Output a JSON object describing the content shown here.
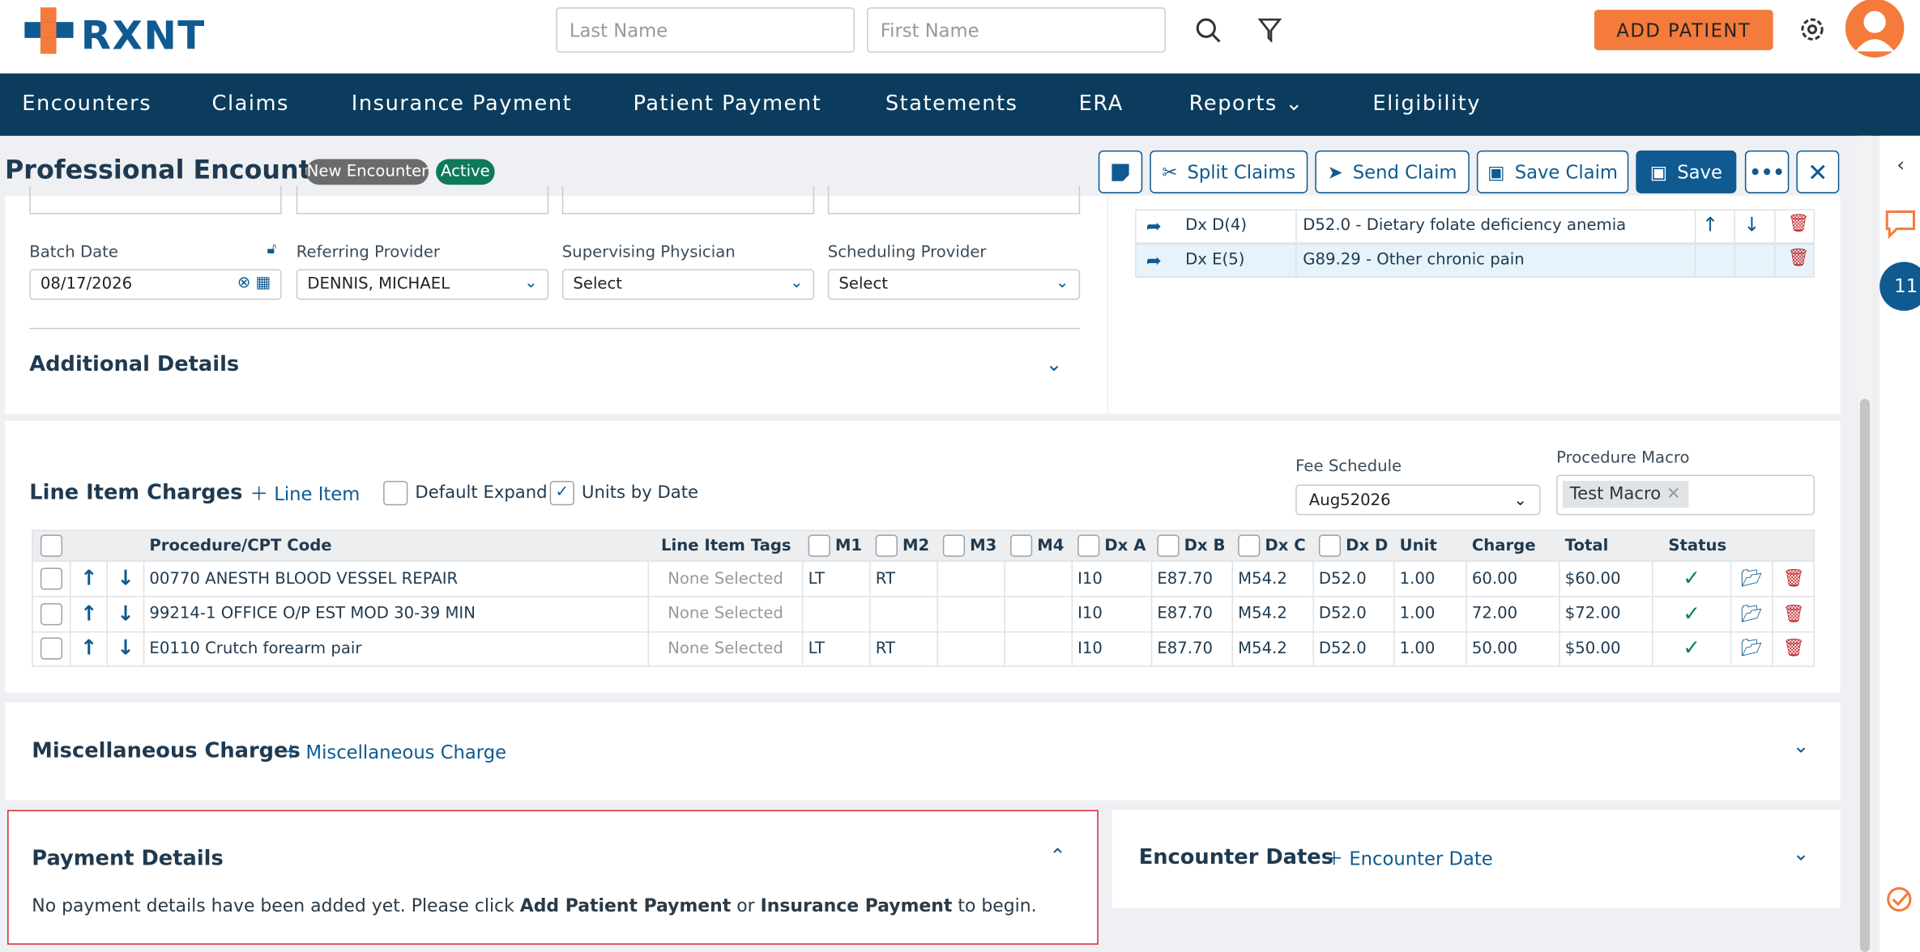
{
  "header": {
    "logo": "RXNT",
    "last_name_placeholder": "Last Name",
    "first_name_placeholder": "First Name",
    "add_patient": "ADD PATIENT"
  },
  "nav": [
    "Encounters",
    "Claims",
    "Insurance Payment",
    "Patient Payment",
    "Statements",
    "ERA",
    "Reports",
    "Eligibility"
  ],
  "toolbar": {
    "title": "Professional Encounter",
    "badges": [
      "New Encounter",
      "Active"
    ],
    "buttons": [
      "Split Claims",
      "Send Claim",
      "Save Claim",
      "Save"
    ]
  },
  "form": {
    "fields": [
      {
        "label": "Batch Date",
        "value": "08/17/2026"
      },
      {
        "label": "Referring Provider",
        "value": "DENNIS, MICHAEL"
      },
      {
        "label": "Supervising Physician",
        "value": "Select"
      },
      {
        "label": "Scheduling Provider",
        "value": "Select"
      }
    ],
    "additional": "Additional Details"
  },
  "diagnoses": [
    {
      "dx": "Dx D(4)",
      "desc": "D52.0 - Dietary folate deficiency anemia"
    },
    {
      "dx": "Dx E(5)",
      "desc": "G89.29 - Other chronic pain"
    }
  ],
  "line_items": {
    "title": "Line Item Charges",
    "add": "Line Item",
    "checks": [
      "Default Expand",
      "Units by Date"
    ],
    "fee_schedule_label": "Fee Schedule",
    "fee_schedule": "Aug52026",
    "macro_label": "Procedure Macro",
    "macro": "Test Macro",
    "columns": [
      "Procedure/CPT Code",
      "Line Item Tags",
      "M1",
      "M2",
      "M3",
      "M4",
      "Dx A",
      "Dx B",
      "Dx C",
      "Dx D",
      "Unit",
      "Charge",
      "Total",
      "Status"
    ],
    "rows": [
      [
        "00770 ANESTH BLOOD VESSEL REPAIR",
        "None Selected",
        "LT",
        "RT",
        "",
        "",
        "I10",
        "E87.70",
        "M54.2",
        "D52.0",
        "1.00",
        "60.00",
        "$60.00"
      ],
      [
        "99214-1 OFFICE O/P EST MOD 30-39 MIN",
        "None Selected",
        "",
        "",
        "",
        "",
        "I10",
        "E87.70",
        "M54.2",
        "D52.0",
        "1.00",
        "72.00",
        "$72.00"
      ],
      [
        "E0110 Crutch forearm pair",
        "None Selected",
        "LT",
        "RT",
        "",
        "",
        "I10",
        "E87.70",
        "M54.2",
        "D52.0",
        "1.00",
        "50.00",
        "$50.00"
      ]
    ]
  },
  "misc": {
    "title": "Miscellaneous Charges",
    "add": "Miscellaneous Charge"
  },
  "payment": {
    "title": "Payment Details",
    "msg_start": "No payment details have been added yet. Please click",
    "link1": "Add Patient Payment",
    "msg_mid": "or",
    "link2": "Insurance Payment",
    "msg_end": "to begin."
  },
  "encounter_dates": {
    "title": "Encounter Dates",
    "add": "Encounter Date"
  },
  "sidebar": {
    "badge": "11"
  }
}
